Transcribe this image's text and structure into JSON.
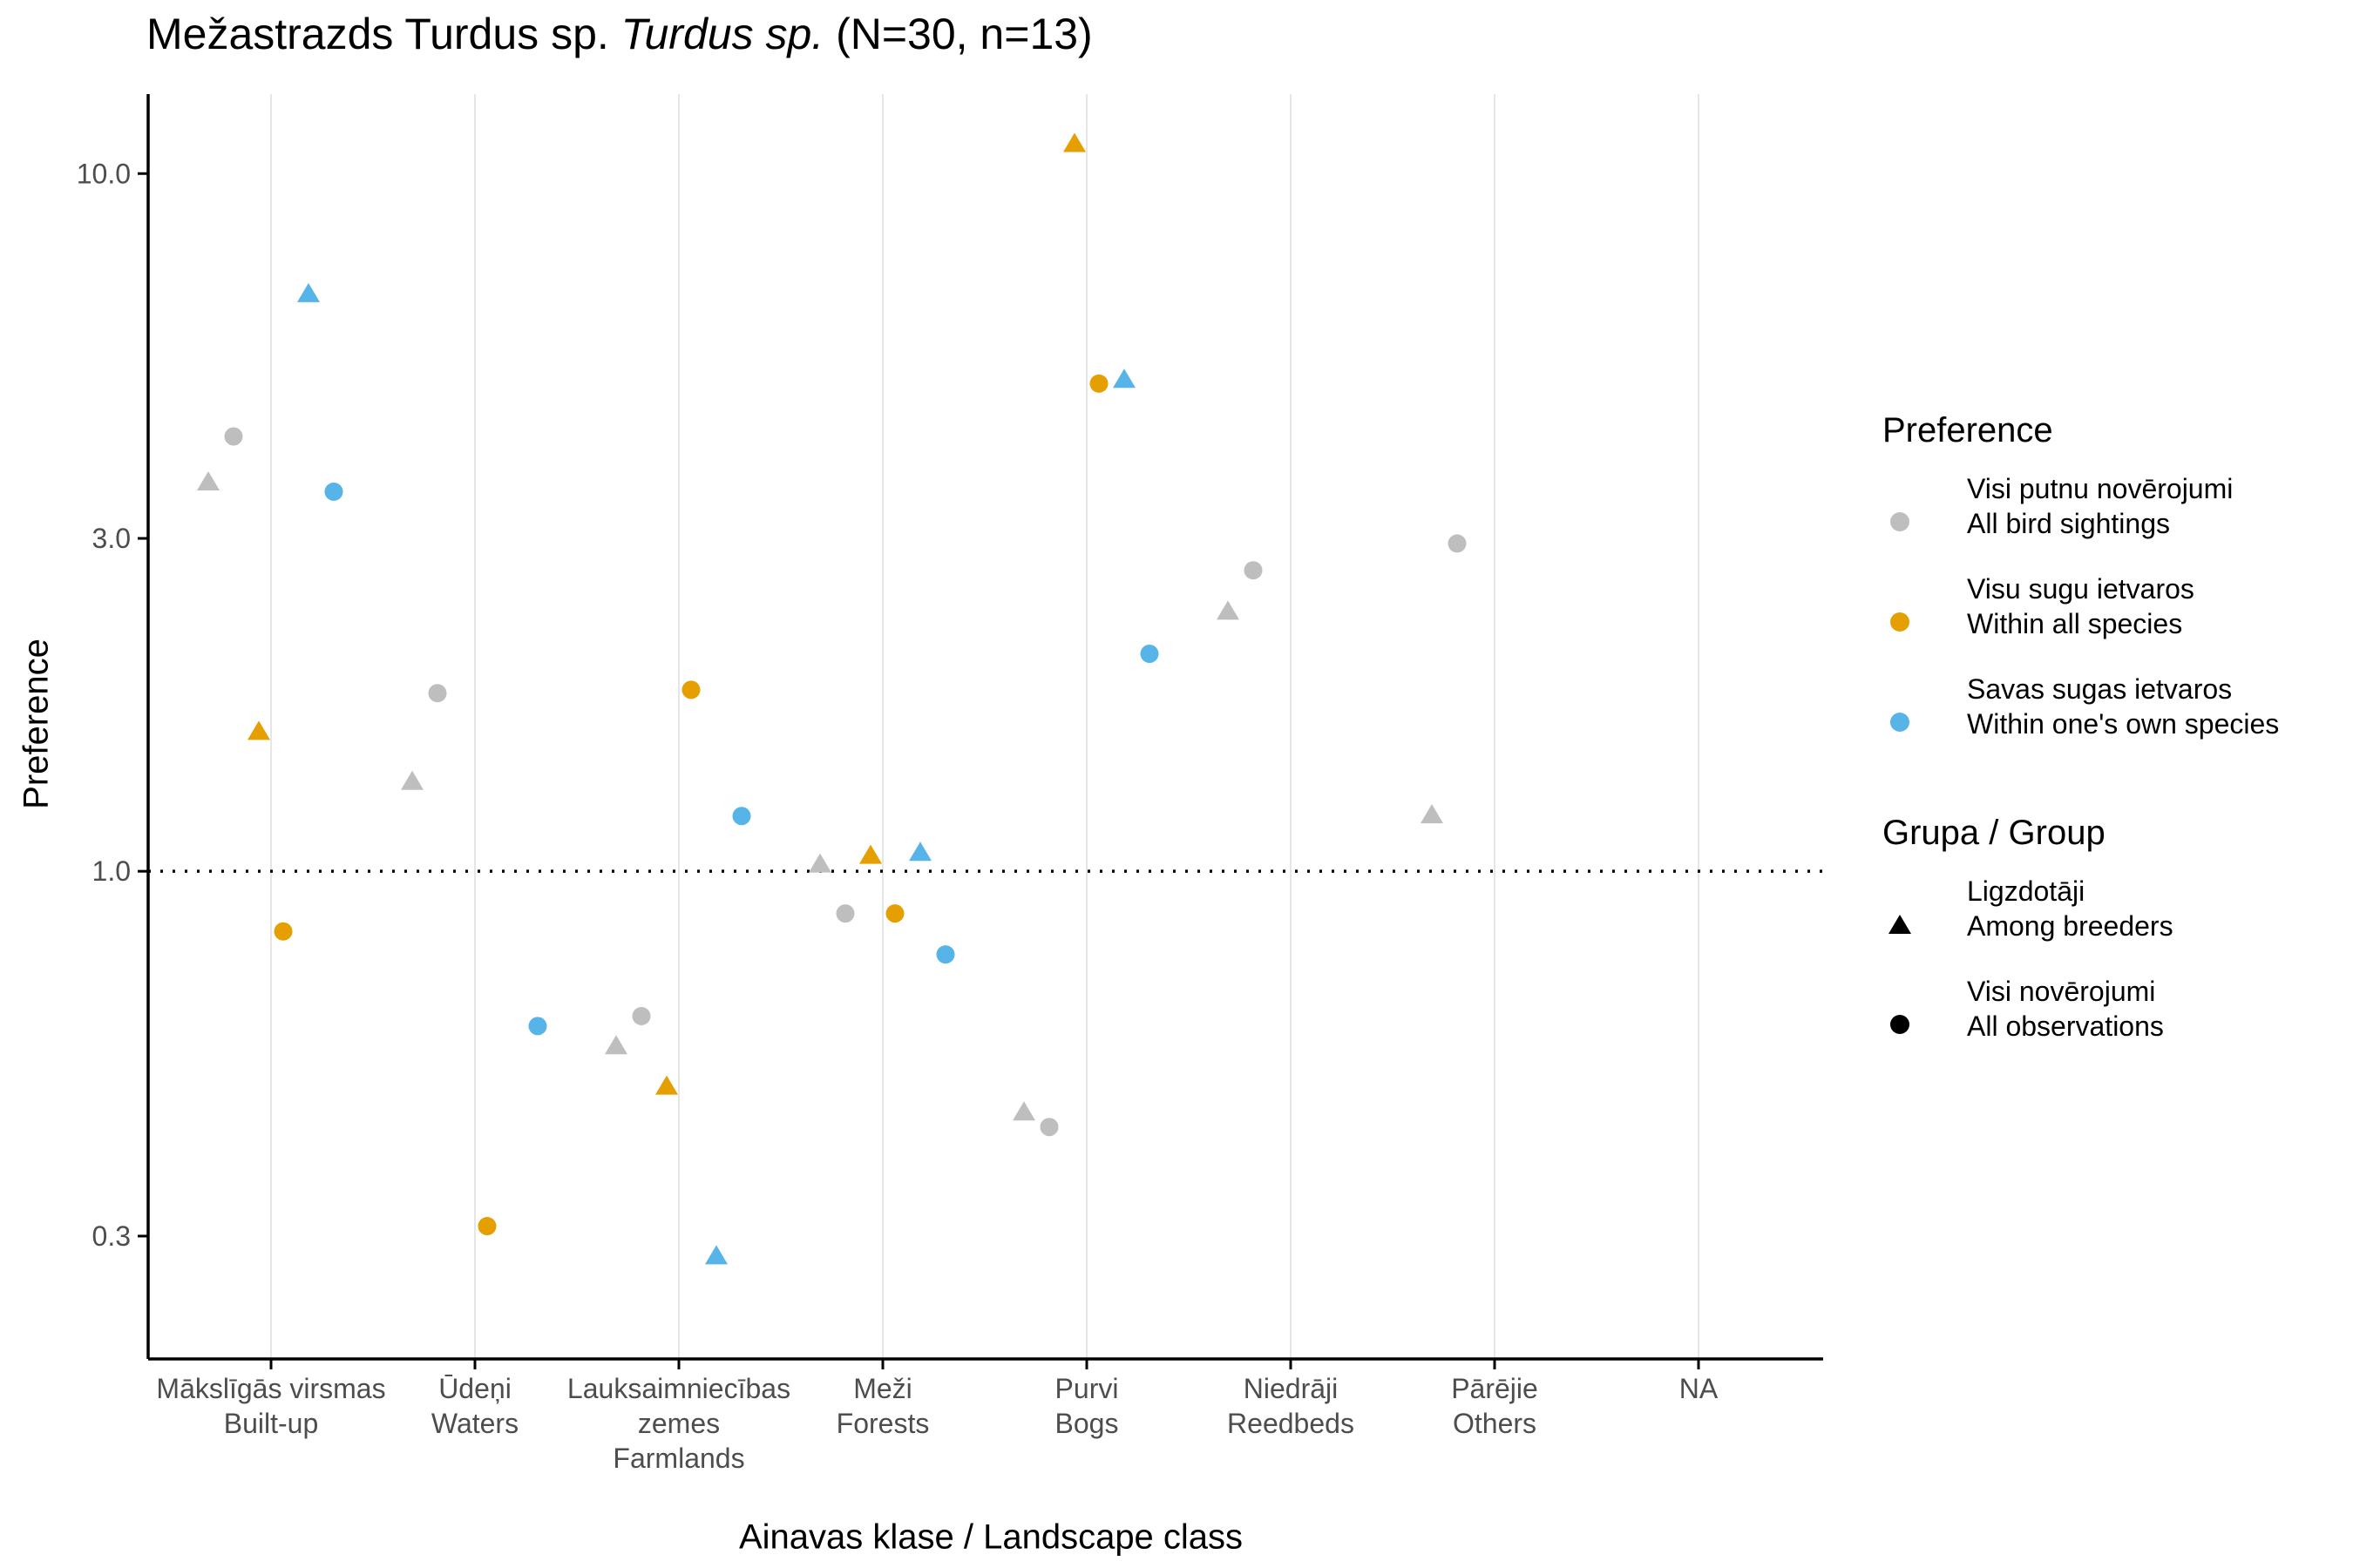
{
  "chart_data": {
    "type": "scatter",
    "title_main": "Mežastrazds Turdus sp.",
    "title_italic": "Turdus sp.",
    "title_counts": "(N=30, n=13)",
    "xlabel": "Ainavas klase / Landscape class",
    "ylabel": "Preference",
    "y_scale": "log",
    "ylim": [
      0.2,
      13
    ],
    "y_ticks": [
      {
        "value": 0.3,
        "label": "0.3"
      },
      {
        "value": 1.0,
        "label": "1.0"
      },
      {
        "value": 3.0,
        "label": "3.0"
      },
      {
        "value": 10.0,
        "label": "10.0"
      }
    ],
    "reference_line": 1.0,
    "categories": [
      {
        "line1": "Mākslīgās virsmas",
        "line2": "Built-up",
        "line3": ""
      },
      {
        "line1": "Ūdeņi",
        "line2": "Waters",
        "line3": ""
      },
      {
        "line1": "Lauksaimniecības",
        "line2": "zemes",
        "line3": "Farmlands"
      },
      {
        "line1": "Meži",
        "line2": "Forests",
        "line3": ""
      },
      {
        "line1": "Purvi",
        "line2": "Bogs",
        "line3": ""
      },
      {
        "line1": "Niedrāji",
        "line2": "Reedbeds",
        "line3": ""
      },
      {
        "line1": "Pārējie",
        "line2": "Others",
        "line3": ""
      },
      {
        "line1": "NA",
        "line2": "",
        "line3": ""
      }
    ],
    "series": [
      {
        "preference": "all",
        "group": "breeders",
        "color": "#BEBEBE",
        "shape": "triangle",
        "values": [
          3.6,
          1.34,
          0.56,
          1.02,
          0.45,
          2.35,
          1.2,
          null
        ]
      },
      {
        "preference": "all",
        "group": "all",
        "color": "#BEBEBE",
        "shape": "circle",
        "values": [
          4.2,
          1.8,
          0.62,
          0.87,
          0.43,
          2.7,
          2.95,
          null
        ]
      },
      {
        "preference": "species",
        "group": "breeders",
        "color": "#E69F00",
        "shape": "triangle",
        "values": [
          1.58,
          null,
          0.49,
          1.05,
          11.0,
          null,
          null,
          null
        ]
      },
      {
        "preference": "species",
        "group": "all",
        "color": "#E69F00",
        "shape": "circle",
        "values": [
          0.82,
          0.31,
          1.82,
          0.87,
          5.0,
          null,
          null,
          null
        ]
      },
      {
        "preference": "own",
        "group": "breeders",
        "color": "#56B4E9",
        "shape": "triangle",
        "values": [
          6.7,
          null,
          0.28,
          1.06,
          5.05,
          null,
          null,
          null
        ]
      },
      {
        "preference": "own",
        "group": "all",
        "color": "#56B4E9",
        "shape": "circle",
        "values": [
          3.5,
          0.6,
          1.2,
          0.76,
          2.05,
          null,
          null,
          null
        ]
      }
    ],
    "legend_placement": "right",
    "legend": {
      "preference_title": "Preference",
      "preference_items": [
        {
          "line1": "Visi putnu novērojumi",
          "line2": "All bird sightings",
          "color": "#BEBEBE"
        },
        {
          "line1": "Visu sugu ietvaros",
          "line2": "Within all species",
          "color": "#E69F00"
        },
        {
          "line1": "Savas sugas ietvaros",
          "line2": "Within one's own species",
          "color": "#56B4E9"
        }
      ],
      "group_title": "Grupa / Group",
      "group_items": [
        {
          "line1": "Ligzdotāji",
          "line2": "Among breeders",
          "shape": "triangle"
        },
        {
          "line1": "Visi novērojumi",
          "line2": "All observations",
          "shape": "circle"
        }
      ]
    }
  }
}
